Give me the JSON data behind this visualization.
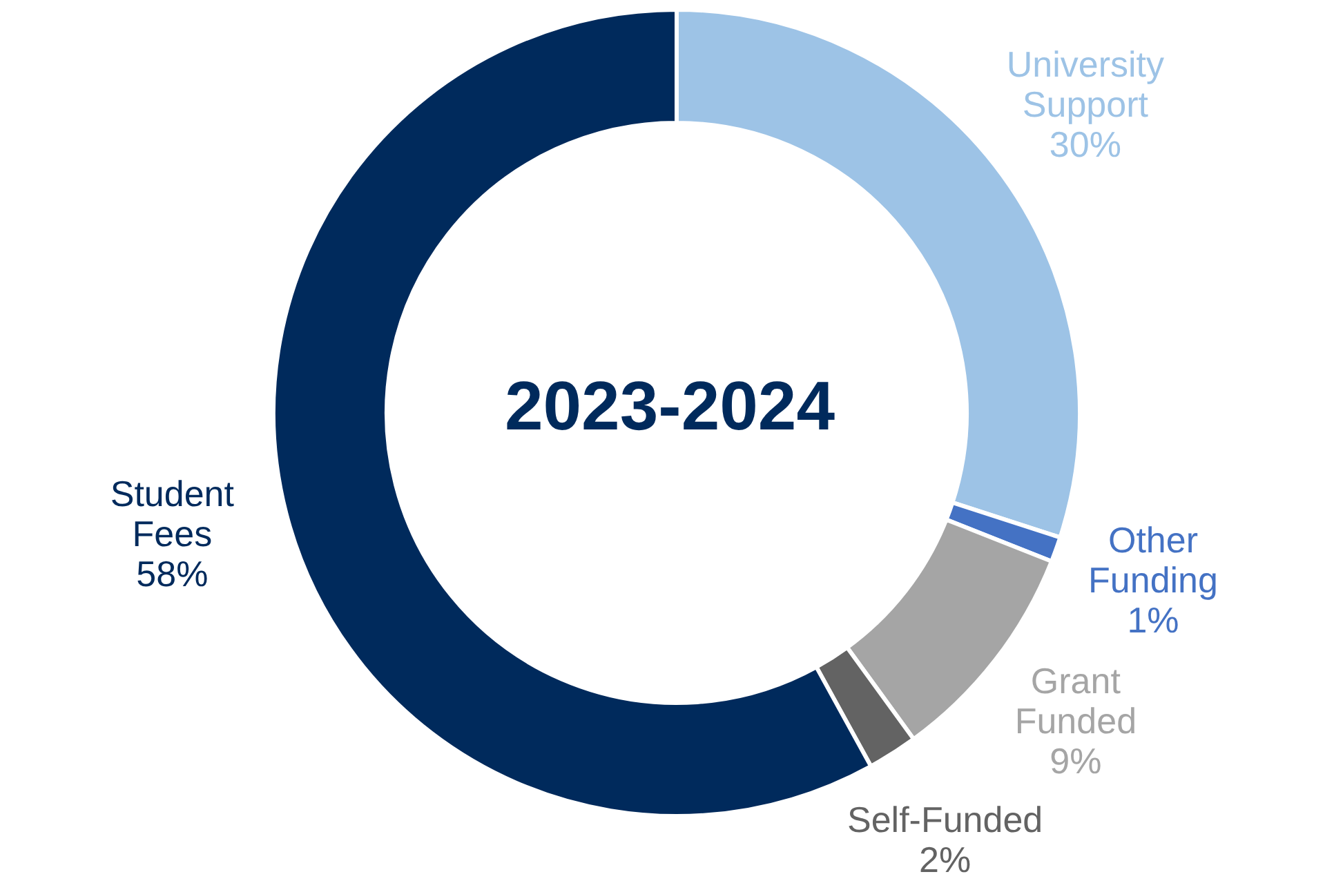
{
  "chart_data": {
    "type": "donut",
    "title": "2023-2024",
    "categories": [
      "University Support",
      "Other Funding",
      "Grant Funded",
      "Self-Funded",
      "Student Fees"
    ],
    "values": [
      30,
      1,
      9,
      2,
      58
    ],
    "colors": [
      "#9dc3e6",
      "#4472c4",
      "#a5a5a5",
      "#636363",
      "#002a5c"
    ],
    "value_labels": [
      "30%",
      "1%",
      "9%",
      "2%",
      "58%"
    ]
  }
}
